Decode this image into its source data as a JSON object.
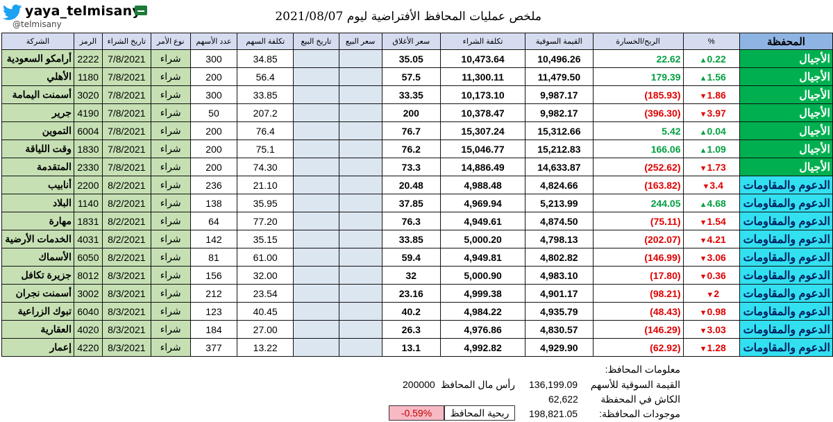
{
  "header": {
    "twitter_handle": "yaya_telmisany",
    "at_handle": "@telmisany",
    "title": "ملخص عمليات المحافظ الأفتراضية   ليوم 2021/08/07"
  },
  "table": {
    "columns": {
      "company": "الشركة",
      "symbol": "الرمز",
      "buy_date": "تاريخ الشراء",
      "order_type": "نوع الأمر",
      "qty": "عدد الأسهم",
      "share_cost": "تكلفة السهم",
      "sell_date": "تاريخ البيع",
      "sell_price": "سعر البيع",
      "close_price": "سعر الأغلاق",
      "buy_cost": "تكلفة الشراء",
      "market_value": "القيمة السوقية",
      "profit_loss": "الربح/الخسارة",
      "pct": "%",
      "portfolio": "المحفظة"
    },
    "rows": [
      {
        "company": "أرامكو السعودية",
        "symbol": "2222",
        "buy_date": "7/8/2021",
        "order_type": "شراء",
        "qty": "300",
        "share_cost": "34.85",
        "sell_date": "",
        "sell_price": "",
        "close_price": "35.05",
        "buy_cost": "10,473.64",
        "market_value": "10,496.26",
        "profit_loss": "22.62",
        "pct": "0.22",
        "dir": "up",
        "portfolio": "الأجيال"
      },
      {
        "company": "الأهلي",
        "symbol": "1180",
        "buy_date": "7/8/2021",
        "order_type": "شراء",
        "qty": "200",
        "share_cost": "56.4",
        "sell_date": "",
        "sell_price": "",
        "close_price": "57.5",
        "buy_cost": "11,300.11",
        "market_value": "11,479.50",
        "profit_loss": "179.39",
        "pct": "1.56",
        "dir": "up",
        "portfolio": "الأجيال"
      },
      {
        "company": "أسمنت اليمامة",
        "symbol": "3020",
        "buy_date": "7/8/2021",
        "order_type": "شراء",
        "qty": "300",
        "share_cost": "33.85",
        "sell_date": "",
        "sell_price": "",
        "close_price": "33.35",
        "buy_cost": "10,173.10",
        "market_value": "9,987.17",
        "profit_loss": "(185.93)",
        "pct": "1.86",
        "dir": "down",
        "portfolio": "الأجيال"
      },
      {
        "company": "جرير",
        "symbol": "4190",
        "buy_date": "7/8/2021",
        "order_type": "شراء",
        "qty": "50",
        "share_cost": "207.2",
        "sell_date": "",
        "sell_price": "",
        "close_price": "200",
        "buy_cost": "10,378.47",
        "market_value": "9,982.17",
        "profit_loss": "(396.30)",
        "pct": "3.97",
        "dir": "down",
        "portfolio": "الأجيال"
      },
      {
        "company": "التموين",
        "symbol": "6004",
        "buy_date": "7/8/2021",
        "order_type": "شراء",
        "qty": "200",
        "share_cost": "76.4",
        "sell_date": "",
        "sell_price": "",
        "close_price": "76.7",
        "buy_cost": "15,307.24",
        "market_value": "15,312.66",
        "profit_loss": "5.42",
        "pct": "0.04",
        "dir": "up",
        "portfolio": "الأجيال"
      },
      {
        "company": "وقت اللياقة",
        "symbol": "1830",
        "buy_date": "7/8/2021",
        "order_type": "شراء",
        "qty": "200",
        "share_cost": "75.1",
        "sell_date": "",
        "sell_price": "",
        "close_price": "76.2",
        "buy_cost": "15,046.77",
        "market_value": "15,212.83",
        "profit_loss": "166.06",
        "pct": "1.09",
        "dir": "up",
        "portfolio": "الأجيال"
      },
      {
        "company": "المتقدمة",
        "symbol": "2330",
        "buy_date": "7/8/2021",
        "order_type": "شراء",
        "qty": "200",
        "share_cost": "74.30",
        "sell_date": "",
        "sell_price": "",
        "close_price": "73.3",
        "buy_cost": "14,886.49",
        "market_value": "14,633.87",
        "profit_loss": "(252.62)",
        "pct": "1.73",
        "dir": "down",
        "portfolio": "الأجيال"
      },
      {
        "company": "أنابيب",
        "symbol": "2200",
        "buy_date": "8/2/2021",
        "order_type": "شراء",
        "qty": "236",
        "share_cost": "21.10",
        "sell_date": "",
        "sell_price": "",
        "close_price": "20.48",
        "buy_cost": "4,988.48",
        "market_value": "4,824.66",
        "profit_loss": "(163.82)",
        "pct": "3.4",
        "dir": "down",
        "portfolio": "الدعوم والمقاومات"
      },
      {
        "company": "البلاد",
        "symbol": "1140",
        "buy_date": "8/2/2021",
        "order_type": "شراء",
        "qty": "138",
        "share_cost": "35.95",
        "sell_date": "",
        "sell_price": "",
        "close_price": "37.85",
        "buy_cost": "4,969.94",
        "market_value": "5,213.99",
        "profit_loss": "244.05",
        "pct": "4.68",
        "dir": "up",
        "portfolio": "الدعوم والمقاومات"
      },
      {
        "company": "مهارة",
        "symbol": "1831",
        "buy_date": "8/2/2021",
        "order_type": "شراء",
        "qty": "64",
        "share_cost": "77.20",
        "sell_date": "",
        "sell_price": "",
        "close_price": "76.3",
        "buy_cost": "4,949.61",
        "market_value": "4,874.50",
        "profit_loss": "(75.11)",
        "pct": "1.54",
        "dir": "down",
        "portfolio": "الدعوم والمقاومات"
      },
      {
        "company": "الخدمات الأرضية",
        "symbol": "4031",
        "buy_date": "8/2/2021",
        "order_type": "شراء",
        "qty": "142",
        "share_cost": "35.15",
        "sell_date": "",
        "sell_price": "",
        "close_price": "33.85",
        "buy_cost": "5,000.20",
        "market_value": "4,798.13",
        "profit_loss": "(202.07)",
        "pct": "4.21",
        "dir": "down",
        "portfolio": "الدعوم والمقاومات"
      },
      {
        "company": "الأسماك",
        "symbol": "6050",
        "buy_date": "8/2/2021",
        "order_type": "شراء",
        "qty": "81",
        "share_cost": "61.00",
        "sell_date": "",
        "sell_price": "",
        "close_price": "59.4",
        "buy_cost": "4,949.81",
        "market_value": "4,802.82",
        "profit_loss": "(146.99)",
        "pct": "3.06",
        "dir": "down",
        "portfolio": "الدعوم والمقاومات"
      },
      {
        "company": "جزيرة تكافل",
        "symbol": "8012",
        "buy_date": "8/3/2021",
        "order_type": "شراء",
        "qty": "156",
        "share_cost": "32.00",
        "sell_date": "",
        "sell_price": "",
        "close_price": "32",
        "buy_cost": "5,000.90",
        "market_value": "4,983.10",
        "profit_loss": "(17.80)",
        "pct": "0.36",
        "dir": "down",
        "portfolio": "الدعوم والمقاومات"
      },
      {
        "company": "أسمنت نجران",
        "symbol": "3002",
        "buy_date": "8/3/2021",
        "order_type": "شراء",
        "qty": "212",
        "share_cost": "23.54",
        "sell_date": "",
        "sell_price": "",
        "close_price": "23.16",
        "buy_cost": "4,999.38",
        "market_value": "4,901.17",
        "profit_loss": "(98.21)",
        "pct": "2",
        "dir": "down",
        "portfolio": "الدعوم والمقاومات"
      },
      {
        "company": "تبوك الزراعية",
        "symbol": "6040",
        "buy_date": "8/3/2021",
        "order_type": "شراء",
        "qty": "123",
        "share_cost": "40.45",
        "sell_date": "",
        "sell_price": "",
        "close_price": "40.2",
        "buy_cost": "4,984.22",
        "market_value": "4,935.79",
        "profit_loss": "(48.43)",
        "pct": "0.98",
        "dir": "down",
        "portfolio": "الدعوم والمقاومات"
      },
      {
        "company": "العقارية",
        "symbol": "4020",
        "buy_date": "8/3/2021",
        "order_type": "شراء",
        "qty": "184",
        "share_cost": "27.00",
        "sell_date": "",
        "sell_price": "",
        "close_price": "26.3",
        "buy_cost": "4,976.86",
        "market_value": "4,830.57",
        "profit_loss": "(146.29)",
        "pct": "3.03",
        "dir": "down",
        "portfolio": "الدعوم والمقاومات"
      },
      {
        "company": "إعمار",
        "symbol": "4220",
        "buy_date": "8/3/2021",
        "order_type": "شراء",
        "qty": "377",
        "share_cost": "13.22",
        "sell_date": "",
        "sell_price": "",
        "close_price": "13.1",
        "buy_cost": "4,992.82",
        "market_value": "4,929.90",
        "profit_loss": "(62.92)",
        "pct": "1.28",
        "dir": "down",
        "portfolio": "الدعوم والمقاومات"
      }
    ]
  },
  "summary": {
    "info_label": "معلومات المحافظ:",
    "market_value_label": "القيمة السوقية للأسهم",
    "market_value": "136,199.09",
    "capital_label": "رأس مال المحافظ",
    "capital": "200000",
    "cash_label": "الكاش في المحفظة",
    "cash": "62,622",
    "assets_label": "موجودات المحافظة:",
    "assets": "198,821.05",
    "profit_label": "ربحية المحافظ",
    "profit_pct": "-0.59%"
  },
  "colors": {
    "positive": "#00a040",
    "negative": "#e00000",
    "portfolio_generations": "#00b050",
    "portfolio_supports": "#33e0f0",
    "stock_cells": "#c6e0b4",
    "header_bg": "#d6dcf0"
  },
  "icons": {
    "bird": "twitter-bird-icon",
    "flag": "saudi-flag-icon",
    "up": "triangle-up-icon",
    "down": "triangle-down-icon"
  }
}
